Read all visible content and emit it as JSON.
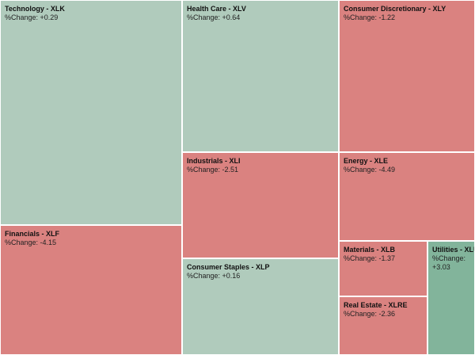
{
  "chart_data": {
    "type": "treemap",
    "title": "",
    "change_prefix": "%Change: ",
    "colors": {
      "positive": "#b0cbbc",
      "negative": "#da8280",
      "strong_positive": "#82b49b"
    },
    "items": [
      {
        "name": "Technology",
        "ticker": "XLK",
        "label": "Technology - XLK",
        "change": 0.29,
        "change_text": "+0.29"
      },
      {
        "name": "Financials",
        "ticker": "XLF",
        "label": "Financials - XLF",
        "change": -4.15,
        "change_text": "-4.15"
      },
      {
        "name": "Health Care",
        "ticker": "XLV",
        "label": "Health Care - XLV",
        "change": 0.64,
        "change_text": "+0.64"
      },
      {
        "name": "Industrials",
        "ticker": "XLI",
        "label": "Industrials - XLI",
        "change": -2.51,
        "change_text": "-2.51"
      },
      {
        "name": "Consumer Staples",
        "ticker": "XLP",
        "label": "Consumer Staples - XLP",
        "change": 0.16,
        "change_text": "+0.16"
      },
      {
        "name": "Consumer Discretionary",
        "ticker": "XLY",
        "label": "Consumer Discretionary - XLY",
        "change": -1.22,
        "change_text": "-1.22"
      },
      {
        "name": "Energy",
        "ticker": "XLE",
        "label": "Energy - XLE",
        "change": -4.49,
        "change_text": "-4.49"
      },
      {
        "name": "Materials",
        "ticker": "XLB",
        "label": "Materials - XLB",
        "change": -1.37,
        "change_text": "-1.37"
      },
      {
        "name": "Real Estate",
        "ticker": "XLRE",
        "label": "Real Estate - XLRE",
        "change": -2.36,
        "change_text": "-2.36"
      },
      {
        "name": "Utilities",
        "ticker": "XLU",
        "label": "Utilities - XLU",
        "change": 3.03,
        "change_text": "+3.03"
      }
    ]
  }
}
